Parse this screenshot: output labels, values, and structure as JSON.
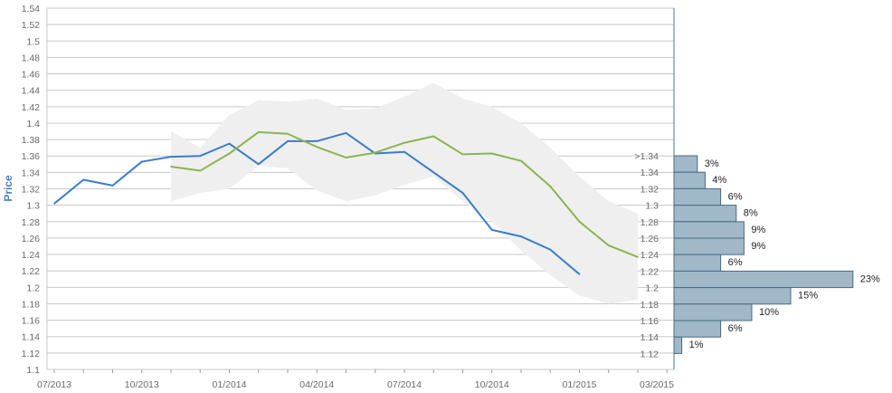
{
  "chart_data": {
    "type": "line",
    "y_axis": {
      "label": "Price",
      "ylim": [
        1.1,
        1.54
      ],
      "ticks": [
        "1.54",
        "1.52",
        "1.5",
        "1.48",
        "1.46",
        "1.44",
        "1.42",
        "1.4",
        "1.38",
        "1.36",
        "1.34",
        "1.32",
        "1.3",
        "1.28",
        "1.26",
        "1.24",
        "1.22",
        "1.2",
        "1.18",
        "1.16",
        "1.14",
        "1.12",
        "1.1"
      ]
    },
    "x_axis": {
      "ticks": [
        "07/2013",
        "10/2013",
        "01/2014",
        "04/2014",
        "07/2014",
        "10/2014",
        "01/2015",
        "03/2015"
      ]
    },
    "series": [
      {
        "color": "#3a7dcc",
        "x": [
          "2013-07",
          "2013-08",
          "2013-09",
          "2013-10",
          "2013-11",
          "2013-12",
          "2014-01",
          "2014-02",
          "2014-03",
          "2014-04",
          "2014-05",
          "2014-06",
          "2014-07",
          "2014-08",
          "2014-09",
          "2014-10",
          "2014-11",
          "2014-12",
          "2015-01"
        ],
        "values": [
          1.302,
          1.331,
          1.324,
          1.353,
          1.359,
          1.36,
          1.375,
          1.35,
          1.378,
          1.378,
          1.388,
          1.363,
          1.365,
          1.34,
          1.315,
          1.27,
          1.262,
          1.246,
          1.216
        ]
      },
      {
        "color": "#8db350",
        "x": [
          "2013-11",
          "2013-12",
          "2014-01",
          "2014-02",
          "2014-03",
          "2014-04",
          "2014-05",
          "2014-06",
          "2014-07",
          "2014-08",
          "2014-09",
          "2014-10",
          "2014-11",
          "2014-12",
          "2015-01",
          "2015-02",
          "2015-03"
        ],
        "values": [
          1.347,
          1.342,
          1.363,
          1.389,
          1.387,
          1.371,
          1.358,
          1.364,
          1.376,
          1.384,
          1.362,
          1.363,
          1.354,
          1.323,
          1.28,
          1.251,
          1.237
        ]
      }
    ],
    "band": {
      "color": "#efefef",
      "x": [
        "2013-11",
        "2013-12",
        "2014-01",
        "2014-02",
        "2014-03",
        "2014-04",
        "2014-05",
        "2014-06",
        "2014-07",
        "2014-08",
        "2014-09",
        "2014-10",
        "2014-11",
        "2014-12",
        "2015-01",
        "2015-02",
        "2015-03"
      ],
      "upper": [
        1.39,
        1.37,
        1.41,
        1.428,
        1.426,
        1.43,
        1.416,
        1.418,
        1.432,
        1.449,
        1.43,
        1.42,
        1.4,
        1.37,
        1.335,
        1.305,
        1.29
      ],
      "lower": [
        1.305,
        1.315,
        1.32,
        1.348,
        1.345,
        1.318,
        1.305,
        1.312,
        1.325,
        1.335,
        1.305,
        1.28,
        1.245,
        1.215,
        1.19,
        1.18,
        1.185
      ]
    },
    "distribution": {
      "bar_color": "#a0b8c8",
      "bins": [
        ">1.34",
        "1.34",
        "1.32",
        "1.3",
        "1.28",
        "1.26",
        "1.24",
        "1.22",
        "1.2",
        "1.18",
        "1.16",
        "1.14",
        "1.12"
      ],
      "values": [
        3,
        4,
        6,
        8,
        9,
        9,
        6,
        23,
        15,
        10,
        6,
        1
      ],
      "labels": [
        "3%",
        "4%",
        "6%",
        "8%",
        "9%",
        "9%",
        "6%",
        "23%",
        "15%",
        "10%",
        "6%",
        "1%"
      ]
    },
    "grid": true
  }
}
